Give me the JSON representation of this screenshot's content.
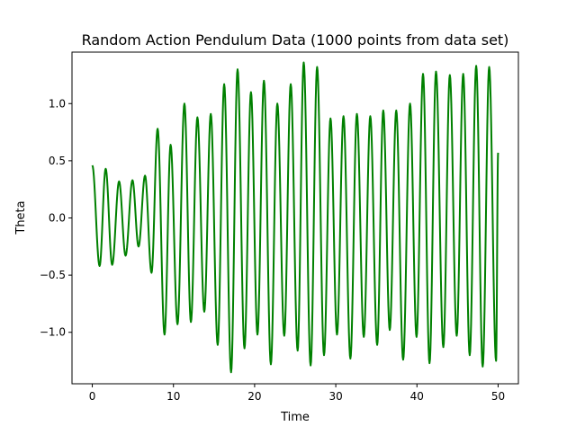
{
  "chart_data": {
    "type": "line",
    "title": "Random Action Pendulum Data (1000 points from data set)",
    "xlabel": "Time",
    "ylabel": "Theta",
    "xlim": [
      -2.5,
      52.5
    ],
    "ylim": [
      -1.45,
      1.45
    ],
    "x_ticks": [
      0,
      10,
      20,
      30,
      40,
      50
    ],
    "x_tick_labels": [
      "0",
      "10",
      "20",
      "30",
      "40",
      "50"
    ],
    "y_ticks": [
      -1.0,
      -0.5,
      0.0,
      0.5,
      1.0
    ],
    "y_tick_labels": [
      "−1.0",
      "−0.5",
      "0.0",
      "0.5",
      "1.0"
    ],
    "grid": false,
    "legend": false,
    "series": [
      {
        "color": "#008000",
        "extrema": [
          [
            0.0,
            0.46
          ],
          [
            0.9,
            -0.42
          ],
          [
            1.65,
            0.43
          ],
          [
            2.45,
            -0.41
          ],
          [
            3.3,
            0.32
          ],
          [
            4.1,
            -0.33
          ],
          [
            4.95,
            0.33
          ],
          [
            5.7,
            -0.25
          ],
          [
            6.5,
            0.37
          ],
          [
            7.3,
            -0.48
          ],
          [
            8.05,
            0.78
          ],
          [
            8.9,
            -1.02
          ],
          [
            9.65,
            0.64
          ],
          [
            10.5,
            -0.93
          ],
          [
            11.35,
            1.0
          ],
          [
            12.15,
            -0.91
          ],
          [
            12.95,
            0.88
          ],
          [
            13.8,
            -0.82
          ],
          [
            14.6,
            0.91
          ],
          [
            15.45,
            -1.11
          ],
          [
            16.25,
            1.17
          ],
          [
            17.1,
            -1.35
          ],
          [
            17.9,
            1.3
          ],
          [
            18.75,
            -1.14
          ],
          [
            19.55,
            1.1
          ],
          [
            20.35,
            -1.02
          ],
          [
            21.15,
            1.2
          ],
          [
            22.0,
            -1.28
          ],
          [
            22.8,
            1.0
          ],
          [
            23.65,
            -1.03
          ],
          [
            24.45,
            1.17
          ],
          [
            25.3,
            -1.16
          ],
          [
            26.05,
            1.36
          ],
          [
            26.9,
            -1.29
          ],
          [
            27.7,
            1.32
          ],
          [
            28.55,
            -1.2
          ],
          [
            29.35,
            0.87
          ],
          [
            30.15,
            -1.02
          ],
          [
            30.95,
            0.89
          ],
          [
            31.8,
            -1.23
          ],
          [
            32.6,
            0.91
          ],
          [
            33.45,
            -1.04
          ],
          [
            34.25,
            0.89
          ],
          [
            35.1,
            -1.11
          ],
          [
            35.85,
            0.94
          ],
          [
            36.65,
            -0.98
          ],
          [
            37.45,
            0.94
          ],
          [
            38.3,
            -1.24
          ],
          [
            39.15,
            1.0
          ],
          [
            39.95,
            -1.04
          ],
          [
            40.75,
            1.26
          ],
          [
            41.55,
            -1.27
          ],
          [
            42.35,
            1.28
          ],
          [
            43.25,
            -1.13
          ],
          [
            44.05,
            1.25
          ],
          [
            44.9,
            -1.03
          ],
          [
            45.7,
            1.26
          ],
          [
            46.5,
            -1.2
          ],
          [
            47.3,
            1.33
          ],
          [
            48.1,
            -1.3
          ],
          [
            48.9,
            1.32
          ],
          [
            49.75,
            -1.25
          ],
          [
            50.0,
            0.57
          ]
        ]
      }
    ]
  }
}
